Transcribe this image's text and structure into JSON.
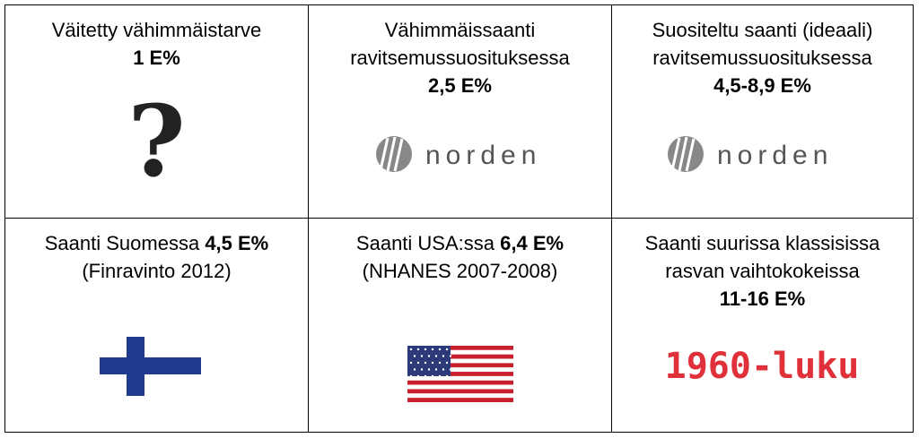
{
  "cells": [
    {
      "lines": [
        "Väitetty vähimmäistarve"
      ],
      "value": "1 E%",
      "icon": "?"
    },
    {
      "lines": [
        "Vähimmäissaanti",
        "ravitsemussuosituksessa"
      ],
      "value": "2,5 E%",
      "logo": "norden"
    },
    {
      "lines": [
        "Suositeltu saanti (ideaali)",
        "ravitsemussuosituksessa"
      ],
      "value": "4,5-8,9 E%",
      "logo": "norden"
    },
    {
      "label": "Saanti Suomessa",
      "value": "4,5 E%",
      "note": "(Finravinto 2012)"
    },
    {
      "label": "Saanti USA:ssa",
      "value": "6,4 E%",
      "note": "(NHANES 2007-2008)"
    },
    {
      "lines": [
        "Saanti suurissa klassisissa",
        "rasvan vaihtokokeissa"
      ],
      "value": "11-16 E%",
      "image_text": "1960-luku"
    }
  ]
}
